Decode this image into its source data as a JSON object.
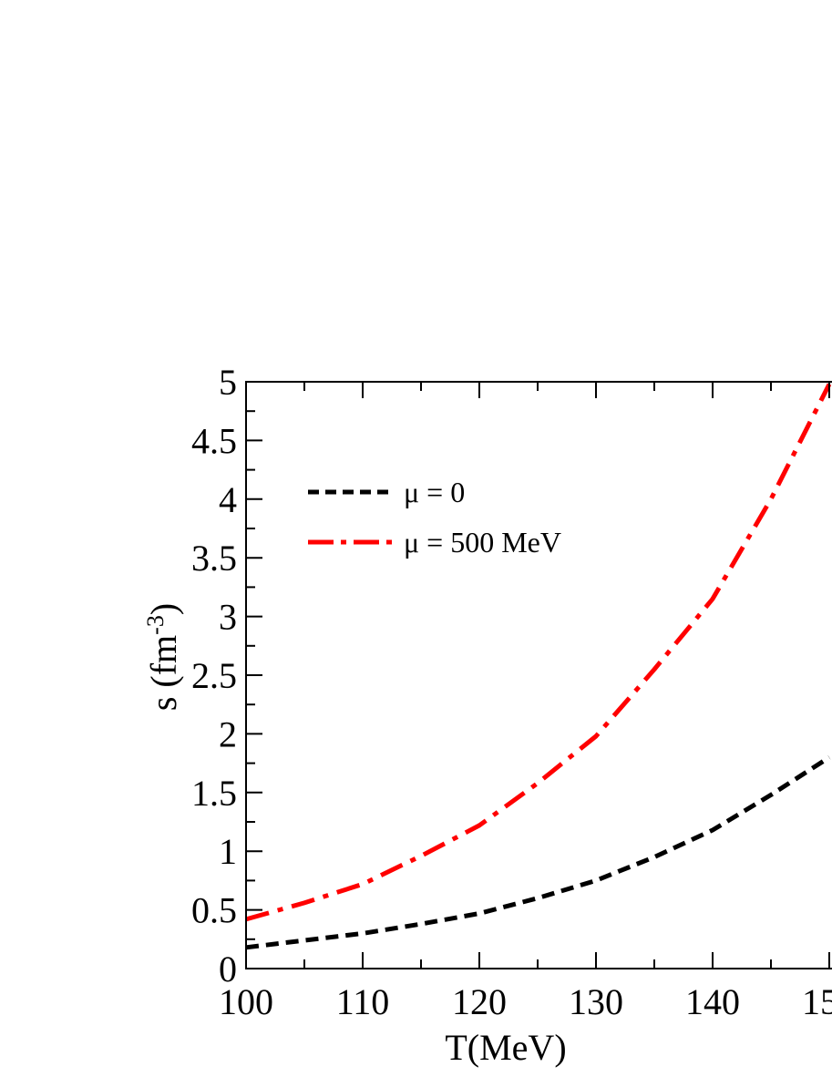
{
  "chart_data": {
    "type": "line",
    "title": "",
    "xlabel": "T(MeV)",
    "ylabel_base": "s (fm",
    "ylabel_sup": "-3",
    "ylabel_close": ")",
    "xlim": [
      100,
      150
    ],
    "ylim": [
      0,
      5
    ],
    "x_ticks": [
      100,
      110,
      120,
      130,
      140
    ],
    "x_tick_labels": [
      "100",
      "110",
      "120",
      "130",
      "140"
    ],
    "x_tick_partial_label": "15",
    "y_ticks": [
      0,
      0.5,
      1,
      1.5,
      2,
      2.5,
      3,
      3.5,
      4,
      4.5,
      5
    ],
    "y_tick_labels": [
      "0",
      "0.5",
      "1",
      "1.5",
      "2",
      "2.5",
      "3",
      "3.5",
      "4",
      "4.5",
      "5"
    ],
    "grid": false,
    "legend_position": "top-left",
    "series": [
      {
        "name": "μ = 0",
        "color": "#000000",
        "style": "dashed",
        "x": [
          100,
          105,
          110,
          115,
          120,
          125,
          130,
          135,
          140,
          145,
          150
        ],
        "y": [
          0.18,
          0.24,
          0.3,
          0.38,
          0.47,
          0.6,
          0.75,
          0.95,
          1.18,
          1.48,
          1.8
        ]
      },
      {
        "name": "μ = 500 MeV",
        "color": "#ff0000",
        "style": "dash-dot",
        "x": [
          100,
          105,
          110,
          115,
          120,
          125,
          130,
          135,
          140,
          145,
          150
        ],
        "y": [
          0.42,
          0.56,
          0.72,
          0.96,
          1.22,
          1.58,
          1.98,
          2.55,
          3.15,
          4.0,
          4.98
        ]
      }
    ]
  }
}
